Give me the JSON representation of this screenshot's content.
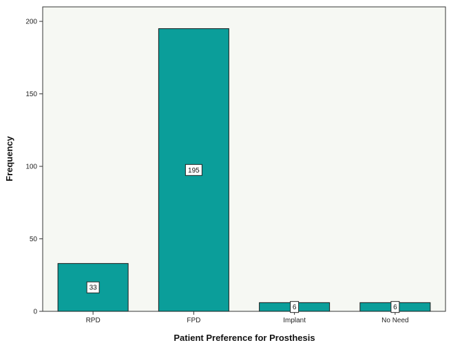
{
  "chart_data": {
    "type": "bar",
    "categories": [
      "RPD",
      "FPD",
      "Implant",
      "No Need"
    ],
    "values": [
      33,
      195,
      6,
      6
    ],
    "data_labels": [
      "33",
      "195",
      "6",
      "6"
    ],
    "xlabel": "Patient Preference for Prosthesis",
    "ylabel": "Frequency",
    "ylim": [
      0,
      210
    ],
    "yticks": [
      0,
      50,
      100,
      150,
      200
    ],
    "ytick_labels": [
      "0",
      "50",
      "100",
      "150",
      "200"
    ],
    "grid": false,
    "legend": "none",
    "colors": {
      "bar_fill": "#0b9e9a",
      "bar_stroke": "#1a1a1a",
      "plot_background": "#f6f8f3"
    }
  }
}
